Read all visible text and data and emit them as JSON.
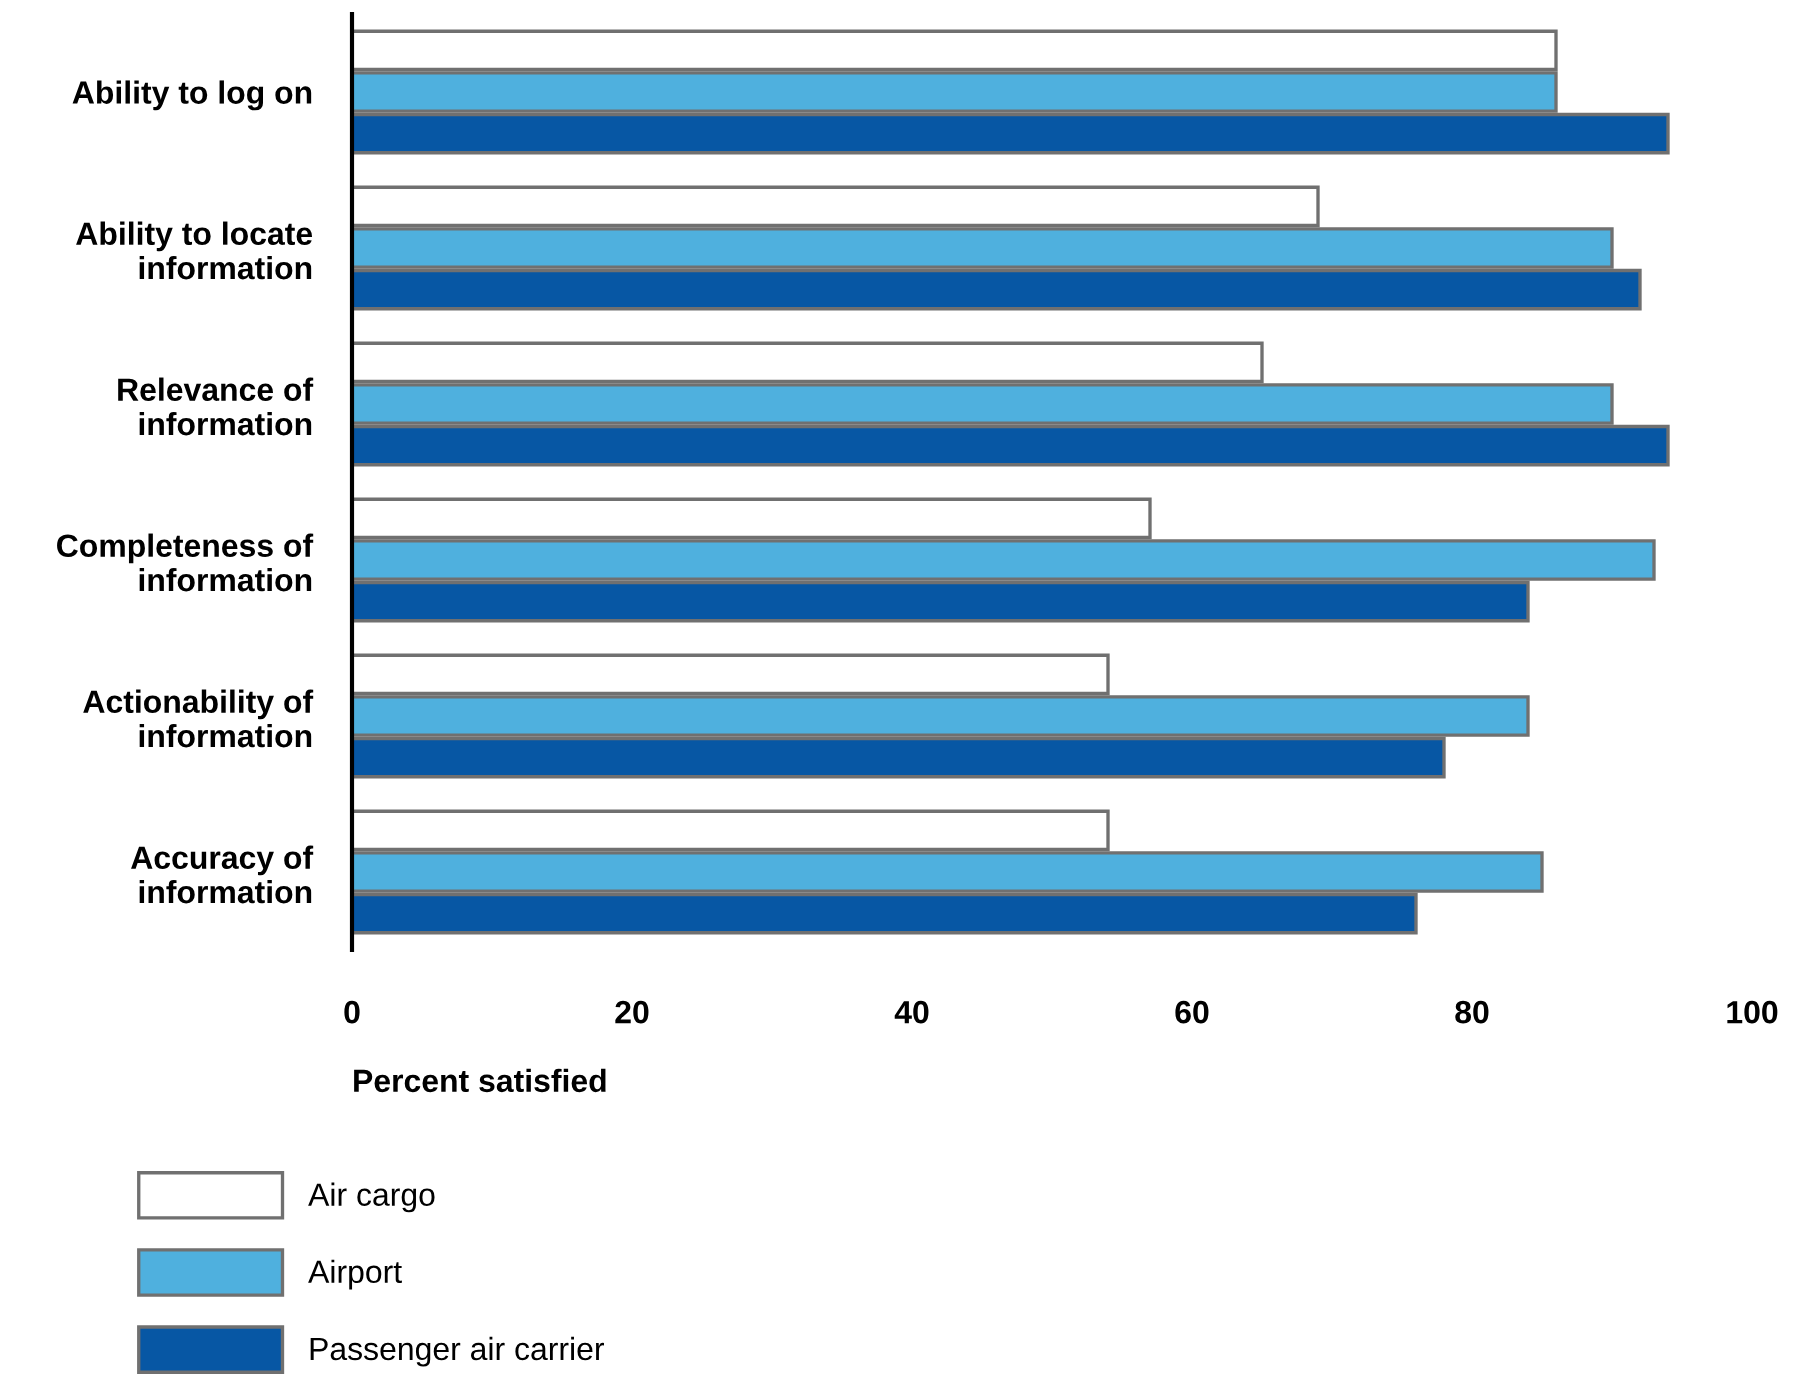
{
  "chart_data": {
    "type": "bar",
    "orientation": "horizontal",
    "xlabel": "Percent satisfied",
    "categories": [
      "Ability to log on",
      "Ability to locate\ninformation",
      "Relevance of\ninformation",
      "Completeness of\ninformation",
      "Actionability of\ninformation",
      "Accuracy of\ninformation"
    ],
    "series": [
      {
        "name": "Air cargo",
        "color": "#ffffff",
        "values": [
          86,
          69,
          65,
          57,
          54,
          54
        ]
      },
      {
        "name": "Airport",
        "color": "#4fb0de",
        "values": [
          86,
          90,
          90,
          93,
          84,
          85
        ]
      },
      {
        "name": "Passenger air carrier",
        "color": "#0757a4",
        "values": [
          94,
          92,
          94,
          84,
          78,
          76
        ]
      }
    ],
    "xlim": [
      0,
      100
    ],
    "xticks": [
      0,
      20,
      40,
      60,
      80,
      100
    ],
    "grid": false,
    "legend": "bottom left"
  }
}
